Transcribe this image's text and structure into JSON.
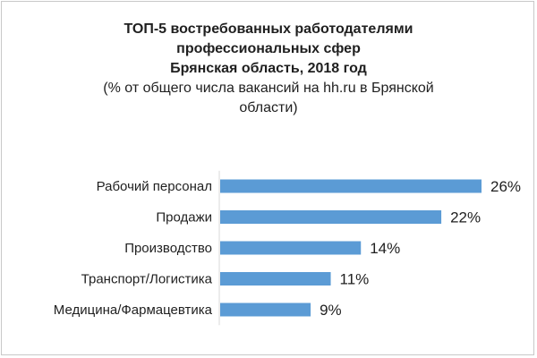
{
  "chart_data": {
    "type": "bar",
    "orientation": "horizontal",
    "title_lines": [
      "ТОП-5 востребованных работодателями",
      "профессиональных сфер",
      "Брянская область, 2018 год"
    ],
    "subtitle_lines": [
      "(% от общего числа вакансий на hh.ru в Брянской",
      "области)"
    ],
    "categories": [
      "Рабочий персонал",
      "Продажи",
      "Производство",
      "Транспорт/Логистика",
      "Медицина/Фармацевтика"
    ],
    "values": [
      26,
      22,
      14,
      11,
      9
    ],
    "data_labels": [
      "26%",
      "22%",
      "14%",
      "11%",
      "9%"
    ],
    "xlim": [
      0,
      26
    ],
    "unit": "%",
    "grid": false,
    "legend": "none",
    "bar_color": "#5b9bd5"
  }
}
